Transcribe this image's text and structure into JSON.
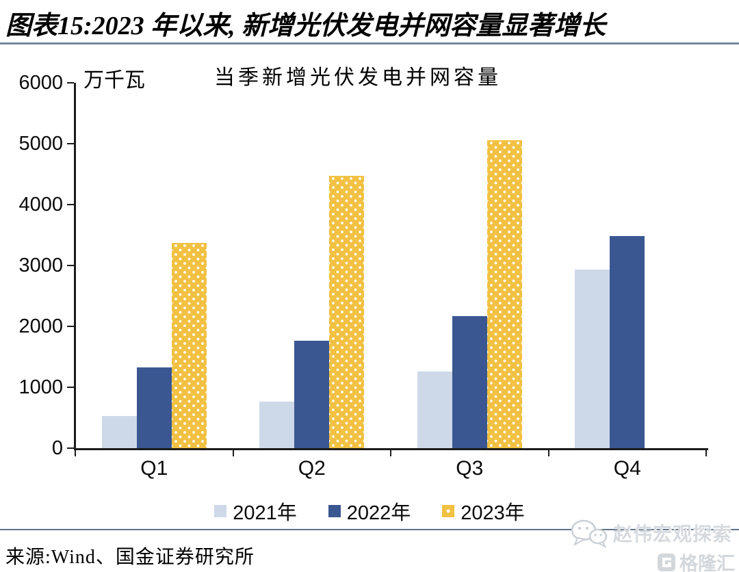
{
  "header": {
    "title": "图表15:2023 年以来, 新增光伏发电并网容量显著增长"
  },
  "chart_data": {
    "type": "bar",
    "title": "当季新增光伏发电并网容量",
    "unit_label": "万千瓦",
    "xlabel": "",
    "ylabel": "万千瓦",
    "categories": [
      "Q1",
      "Q2",
      "Q3",
      "Q4"
    ],
    "series": [
      {
        "name": "2021年",
        "color": "#CDD9E8",
        "pattern": "solid",
        "values": [
          533,
          768,
          1255,
          2932
        ]
      },
      {
        "name": "2022年",
        "color": "#3A5792",
        "pattern": "solid",
        "values": [
          1321,
          1767,
          2172,
          3481
        ]
      },
      {
        "name": "2023年",
        "color": "#F2C142",
        "pattern": "white-dots",
        "values": [
          3366,
          4476,
          5052,
          null
        ]
      }
    ],
    "ylim": [
      0,
      6000
    ],
    "ytick_step": 1000,
    "yticks": [
      "0",
      "1000",
      "2000",
      "3000",
      "4000",
      "5000",
      "6000"
    ],
    "grid": false,
    "legend_position": "bottom"
  },
  "footer": {
    "source": "来源:Wind、国金证券研究所",
    "watermark_text": "赵伟宏观探索",
    "logo_text": "格隆汇"
  }
}
